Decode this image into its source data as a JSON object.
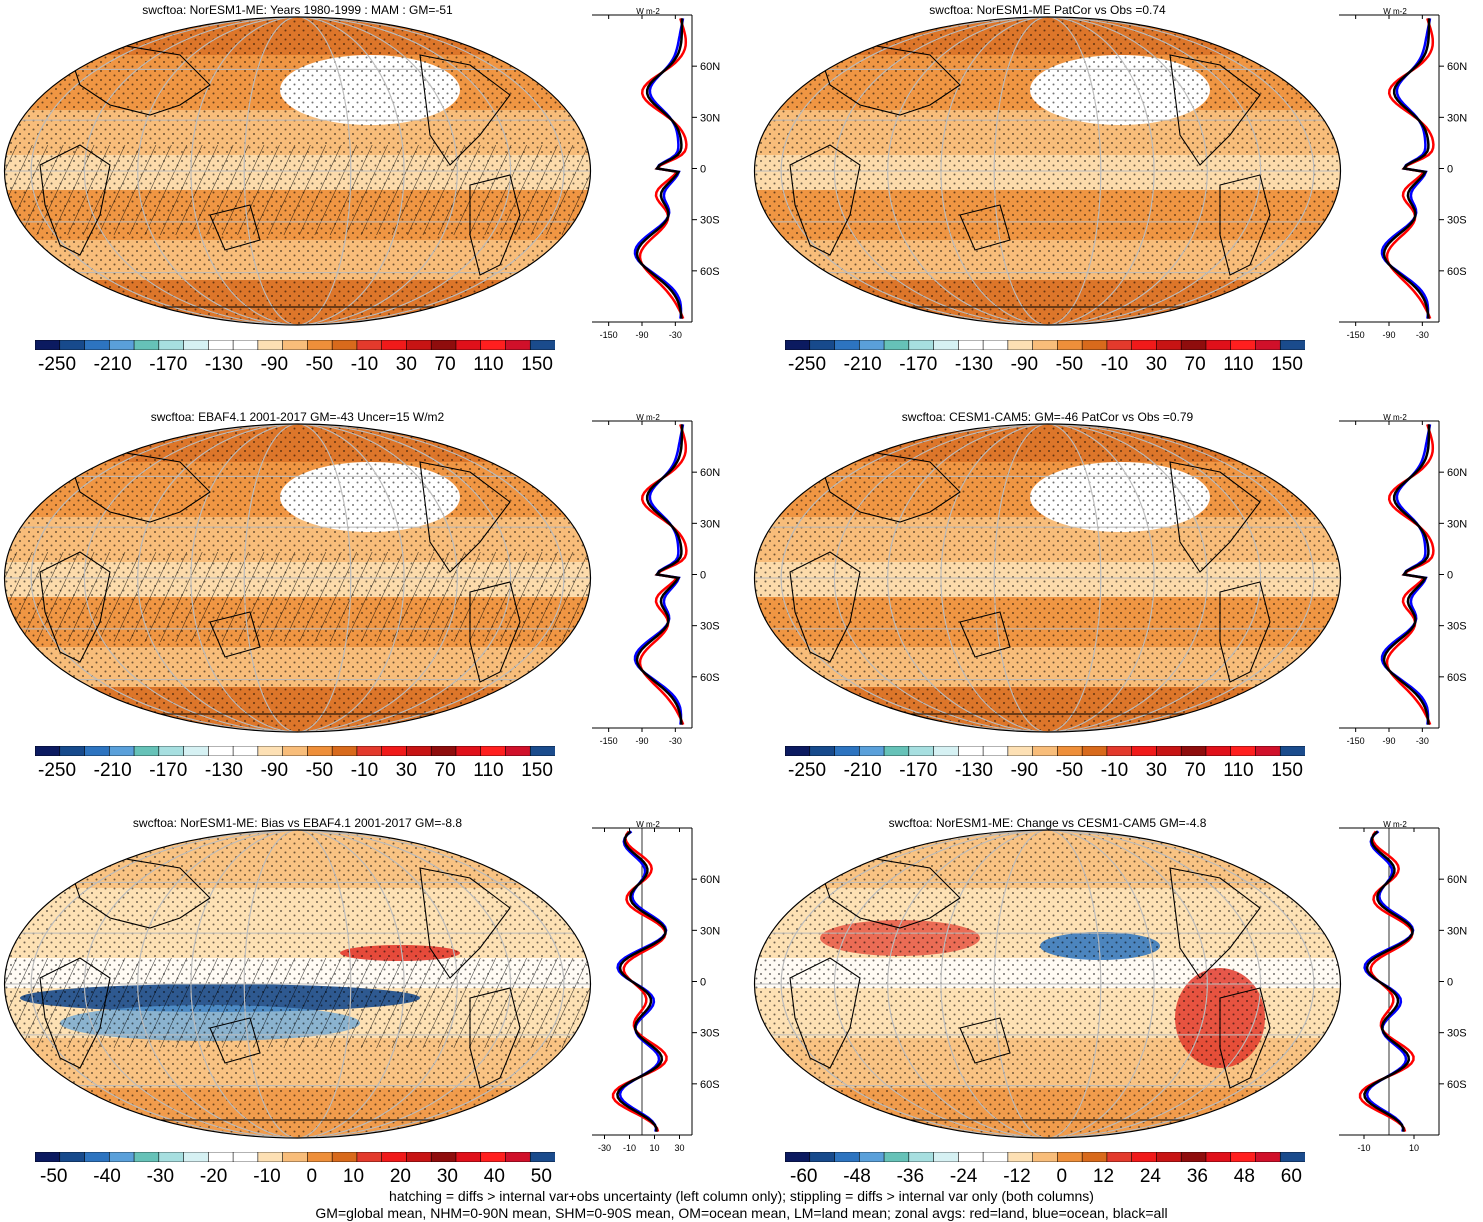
{
  "panels": [
    {
      "title": "swcftoa: NorESM1-ME: Years 1980-1999 : MAM : GM=-51",
      "zonal_ticks": [
        "-150",
        "-90",
        "-30"
      ],
      "cbar_labels": [
        "-250",
        "-210",
        "-170",
        "-130",
        "-90",
        "-50",
        "-10",
        "30",
        "70",
        "110",
        "150"
      ]
    },
    {
      "title": "swcftoa: NorESM1-ME PatCor vs Obs =0.74",
      "zonal_ticks": [
        "-150",
        "-90",
        "-30"
      ],
      "cbar_labels": [
        "-250",
        "-210",
        "-170",
        "-130",
        "-90",
        "-50",
        "-10",
        "30",
        "70",
        "110",
        "150"
      ]
    },
    {
      "title": "swcftoa: EBAF4.1 2001-2017 GM=-43 Uncer=15 W/m2",
      "zonal_ticks": [
        "-150",
        "-90",
        "-30"
      ],
      "cbar_labels": [
        "-250",
        "-210",
        "-170",
        "-130",
        "-90",
        "-50",
        "-10",
        "30",
        "70",
        "110",
        "150"
      ]
    },
    {
      "title": "swcftoa: CESM1-CAM5: GM=-46 PatCor vs Obs =0.79",
      "zonal_ticks": [
        "-150",
        "-90",
        "-30"
      ],
      "cbar_labels": [
        "-250",
        "-210",
        "-170",
        "-130",
        "-90",
        "-50",
        "-10",
        "30",
        "70",
        "110",
        "150"
      ]
    },
    {
      "title": "swcftoa: NorESM1-ME: Bias vs EBAF4.1 2001-2017 GM=-8.8",
      "zonal_ticks": [
        "-30",
        "-10",
        "10",
        "30"
      ],
      "cbar_labels": [
        "-50",
        "-40",
        "-30",
        "-20",
        "-10",
        "0",
        "10",
        "20",
        "30",
        "40",
        "50"
      ]
    },
    {
      "title": "swcftoa: NorESM1-ME: Change vs CESM1-CAM5 GM=-4.8",
      "zonal_ticks": [
        "-10",
        "10"
      ],
      "cbar_labels": [
        "-60",
        "-48",
        "-36",
        "-24",
        "-12",
        "0",
        "12",
        "24",
        "36",
        "48",
        "60"
      ]
    }
  ],
  "zonal_unit": "W m-2",
  "lat_labels": [
    "60N",
    "30N",
    "0",
    "30S",
    "60S"
  ],
  "legend": {
    "line1": "hatching = diffs > internal var+obs uncertainty (left column only); stippling = diffs > internal var only (both columns)",
    "line2": "GM=global mean, NHM=0-90N mean, SHM=0-90S mean, OM=ocean mean, LM=land mean; zonal avgs: red=land, blue=ocean, black=all"
  },
  "colors": {
    "scale": [
      "#0b1a60",
      "#174a8c",
      "#2d74c0",
      "#5aa0da",
      "#66c2b8",
      "#a7dfe0",
      "#d6f1f3",
      "#ffffff",
      "#ffffff",
      "#fde0b4",
      "#f8bd7a",
      "#ee8f3a",
      "#d86a1c",
      "#e33a2c",
      "#f01a1a",
      "#c71414",
      "#8f0d0d",
      "#e0101a",
      "#ff1f1f",
      "#d0102a",
      "#1a4b8c"
    ],
    "land_line": "#ff0000",
    "ocean_line": "#0000ff",
    "all_line": "#000000"
  }
}
